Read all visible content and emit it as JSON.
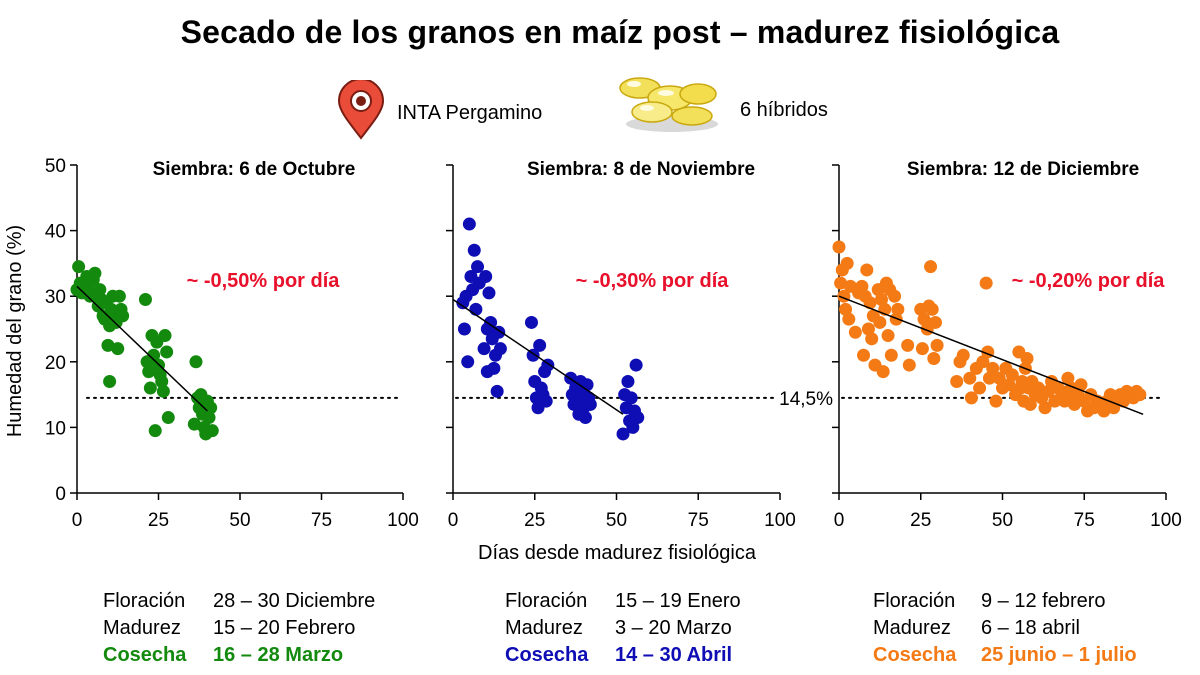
{
  "title": "Secado de los granos en maíz post – madurez fisiológica",
  "location_label": "INTA Pergamino",
  "hybrids_label": "6 híbridos",
  "icons": {
    "location": "map-pin-icon",
    "hybrids": "corn-kernels-icon"
  },
  "colors": {
    "green": "#138a0e",
    "blue": "#0e0eb4",
    "orange": "#f47a15",
    "red": "#e8102a"
  },
  "chart_data": [
    {
      "type": "scatter",
      "title": "Siembra: 6 de Octubre",
      "ylabel": "Humedad del grano (%)",
      "xlim": [
        0,
        100
      ],
      "ylim": [
        0,
        50
      ],
      "xticks": [
        0,
        25,
        50,
        75,
        100
      ],
      "yticks": [
        0,
        10,
        20,
        30,
        40,
        50
      ],
      "annotation": "~ -0,50% por día",
      "reference_y": 14.5,
      "trend": [
        [
          0,
          31.5
        ],
        [
          40,
          12.5
        ]
      ],
      "series": [
        {
          "color": "#138a0e",
          "points": [
            [
              0,
              31
            ],
            [
              0.5,
              34.5
            ],
            [
              1,
              32
            ],
            [
              1.5,
              30.5
            ],
            [
              2,
              31.5
            ],
            [
              3,
              33
            ],
            [
              3.5,
              31
            ],
            [
              4,
              30
            ],
            [
              5,
              32.5
            ],
            [
              5.5,
              33.5
            ],
            [
              6,
              30
            ],
            [
              6.5,
              28.5
            ],
            [
              7,
              31
            ],
            [
              7.5,
              29.5
            ],
            [
              8,
              27
            ],
            [
              8.5,
              26.5
            ],
            [
              9,
              29
            ],
            [
              9.5,
              22.5
            ],
            [
              10,
              25.5
            ],
            [
              10.5,
              28
            ],
            [
              11,
              30
            ],
            [
              11.5,
              27.5
            ],
            [
              12,
              26
            ],
            [
              12.5,
              22
            ],
            [
              13,
              30
            ],
            [
              13.5,
              28
            ],
            [
              14,
              27
            ],
            [
              10,
              17
            ],
            [
              21,
              29.5
            ],
            [
              21.5,
              20
            ],
            [
              22,
              18.5
            ],
            [
              22.5,
              16
            ],
            [
              23,
              24
            ],
            [
              23.5,
              21
            ],
            [
              24,
              9.5
            ],
            [
              24.5,
              23
            ],
            [
              25,
              19.5
            ],
            [
              25.5,
              18
            ],
            [
              26,
              17
            ],
            [
              26.5,
              15.5
            ],
            [
              27,
              24
            ],
            [
              27.5,
              21.5
            ],
            [
              28,
              11.5
            ],
            [
              36,
              10.5
            ],
            [
              36.5,
              20
            ],
            [
              37,
              14.5
            ],
            [
              37.5,
              13
            ],
            [
              38,
              15
            ],
            [
              38.5,
              12
            ],
            [
              39,
              10
            ],
            [
              39.5,
              9
            ],
            [
              40,
              14
            ],
            [
              40.5,
              11.5
            ],
            [
              41,
              13
            ],
            [
              41.5,
              9.5
            ]
          ]
        }
      ]
    },
    {
      "type": "scatter",
      "title": "Siembra: 8 de Noviembre",
      "xlim": [
        0,
        100
      ],
      "ylim": [
        0,
        50
      ],
      "xticks": [
        0,
        25,
        50,
        75,
        100
      ],
      "yticks": [
        0,
        10,
        20,
        30,
        40,
        50
      ],
      "annotation": "~ -0,30% por día",
      "reference_y": 14.5,
      "trend": [
        [
          0,
          29.5
        ],
        [
          52,
          12
        ]
      ],
      "series": [
        {
          "color": "#0e0eb4",
          "points": [
            [
              3,
              29
            ],
            [
              3.5,
              25
            ],
            [
              4,
              30
            ],
            [
              4.5,
              20
            ],
            [
              5,
              41
            ],
            [
              5.5,
              33
            ],
            [
              6,
              31
            ],
            [
              6.5,
              37
            ],
            [
              7,
              28
            ],
            [
              7.5,
              34.5
            ],
            [
              8,
              32
            ],
            [
              9.5,
              22
            ],
            [
              10,
              33
            ],
            [
              10.5,
              25
            ],
            [
              11,
              30.5
            ],
            [
              11.5,
              26
            ],
            [
              12,
              23.5
            ],
            [
              12.5,
              19
            ],
            [
              13,
              21
            ],
            [
              13.5,
              15.5
            ],
            [
              14,
              24.5
            ],
            [
              14.5,
              22
            ],
            [
              10.5,
              18.5
            ],
            [
              24,
              26
            ],
            [
              24.5,
              21
            ],
            [
              25,
              17
            ],
            [
              25.5,
              14.5
            ],
            [
              26,
              13
            ],
            [
              26.5,
              22.5
            ],
            [
              27,
              16
            ],
            [
              27.5,
              15
            ],
            [
              28,
              18.5
            ],
            [
              28.5,
              14
            ],
            [
              29,
              19.5
            ],
            [
              36,
              17.5
            ],
            [
              36.5,
              15
            ],
            [
              37,
              13.5
            ],
            [
              37.5,
              16
            ],
            [
              38,
              14
            ],
            [
              38.5,
              12
            ],
            [
              39,
              17
            ],
            [
              39.5,
              15.5
            ],
            [
              40,
              13
            ],
            [
              40.5,
              11.5
            ],
            [
              41,
              16.5
            ],
            [
              41.5,
              14.5
            ],
            [
              42,
              13.5
            ],
            [
              52,
              9
            ],
            [
              52.5,
              15
            ],
            [
              53,
              13
            ],
            [
              53.5,
              17
            ],
            [
              54,
              11
            ],
            [
              54.5,
              14.5
            ],
            [
              55,
              10
            ],
            [
              55.5,
              12.5
            ],
            [
              56,
              19.5
            ],
            [
              56.5,
              11.5
            ]
          ]
        }
      ]
    },
    {
      "type": "scatter",
      "title": "Siembra: 12 de Diciembre",
      "xlim": [
        0,
        100
      ],
      "ylim": [
        0,
        50
      ],
      "xticks": [
        0,
        25,
        50,
        75,
        100
      ],
      "yticks": [
        0,
        10,
        20,
        30,
        40,
        50
      ],
      "annotation": "~ -0,20% por día",
      "reference_y": 14.5,
      "reference_label": "14,5%",
      "trend": [
        [
          0,
          30
        ],
        [
          93,
          12
        ]
      ],
      "series": [
        {
          "color": "#f47a15",
          "points": [
            [
              0,
              37.5
            ],
            [
              0.5,
              32
            ],
            [
              1,
              34
            ],
            [
              1.5,
              30
            ],
            [
              2,
              28
            ],
            [
              2.5,
              35
            ],
            [
              3,
              26.5
            ],
            [
              3.5,
              31.5
            ],
            [
              5,
              24.5
            ],
            [
              6,
              30.5
            ],
            [
              7,
              31.5
            ],
            [
              7.5,
              21
            ],
            [
              8,
              30
            ],
            [
              8.5,
              34
            ],
            [
              9,
              25
            ],
            [
              9.5,
              29
            ],
            [
              10,
              23.5
            ],
            [
              10.5,
              27
            ],
            [
              11,
              19.5
            ],
            [
              12,
              31
            ],
            [
              12.5,
              26
            ],
            [
              13,
              29.5
            ],
            [
              13.5,
              18.5
            ],
            [
              14,
              28
            ],
            [
              14.5,
              32
            ],
            [
              15,
              24
            ],
            [
              15.5,
              31
            ],
            [
              16,
              21
            ],
            [
              17,
              30
            ],
            [
              17.5,
              26.5
            ],
            [
              18,
              28
            ],
            [
              21,
              22.5
            ],
            [
              21.5,
              19.5
            ],
            [
              25,
              28
            ],
            [
              25.5,
              22
            ],
            [
              26,
              26.5
            ],
            [
              27,
              25
            ],
            [
              27.5,
              28.5
            ],
            [
              28,
              34.5
            ],
            [
              28.5,
              28
            ],
            [
              29,
              20.5
            ],
            [
              29.5,
              26
            ],
            [
              30,
              22.5
            ],
            [
              36,
              17
            ],
            [
              37,
              20
            ],
            [
              38,
              21
            ],
            [
              40,
              17.5
            ],
            [
              40.5,
              14.5
            ],
            [
              42,
              19
            ],
            [
              43,
              16
            ],
            [
              44,
              20
            ],
            [
              45,
              32
            ],
            [
              45.5,
              21.5
            ],
            [
              46,
              17.5
            ],
            [
              47,
              19
            ],
            [
              48,
              14
            ],
            [
              49,
              17.5
            ],
            [
              50,
              16
            ],
            [
              51,
              19
            ],
            [
              52,
              16.5
            ],
            [
              53,
              18
            ],
            [
              54,
              15
            ],
            [
              55,
              21.5
            ],
            [
              55.5,
              16
            ],
            [
              56,
              17
            ],
            [
              56.5,
              14
            ],
            [
              57,
              19
            ],
            [
              57.5,
              20.5
            ],
            [
              58,
              16
            ],
            [
              58.5,
              13.5
            ],
            [
              59,
              17
            ],
            [
              60,
              15
            ],
            [
              61,
              16
            ],
            [
              62,
              14.5
            ],
            [
              63,
              13
            ],
            [
              64,
              15.5
            ],
            [
              65,
              17
            ],
            [
              66,
              14
            ],
            [
              67,
              16
            ],
            [
              68,
              15.5
            ],
            [
              69,
              14
            ],
            [
              70,
              17.5
            ],
            [
              70.5,
              14.5
            ],
            [
              71,
              16
            ],
            [
              72,
              13.5
            ],
            [
              73,
              15
            ],
            [
              74,
              16.5
            ],
            [
              75,
              14
            ],
            [
              76,
              12.5
            ],
            [
              77,
              15
            ],
            [
              78,
              13
            ],
            [
              79,
              14
            ],
            [
              80,
              13.5
            ],
            [
              81,
              12.5
            ],
            [
              82,
              14
            ],
            [
              83,
              15
            ],
            [
              84,
              13
            ],
            [
              85,
              14.5
            ],
            [
              86,
              15
            ],
            [
              87,
              14
            ],
            [
              88,
              15.5
            ],
            [
              89,
              15
            ],
            [
              90,
              14.5
            ],
            [
              91,
              15.5
            ],
            [
              92,
              15
            ]
          ]
        }
      ]
    }
  ],
  "shared_xlabel": "Días desde madurez fisiológica",
  "info_blocks": [
    {
      "color": "#138a0e",
      "rows": [
        {
          "label": "Floración",
          "value": "28 – 30 Diciembre"
        },
        {
          "label": "Madurez",
          "value": "15 – 20 Febrero"
        },
        {
          "label": "Cosecha",
          "value": "16 – 28 Marzo"
        }
      ]
    },
    {
      "color": "#0e0eb4",
      "rows": [
        {
          "label": "Floración",
          "value": "15 – 19 Enero"
        },
        {
          "label": "Madurez",
          "value": "3 – 20 Marzo"
        },
        {
          "label": "Cosecha",
          "value": "14 – 30 Abril"
        }
      ]
    },
    {
      "color": "#f47a15",
      "rows": [
        {
          "label": "Floración",
          "value": "9 – 12 febrero"
        },
        {
          "label": "Madurez",
          "value": "6 – 18 abril"
        },
        {
          "label": "Cosecha",
          "value": "25 junio – 1 julio"
        }
      ]
    }
  ]
}
